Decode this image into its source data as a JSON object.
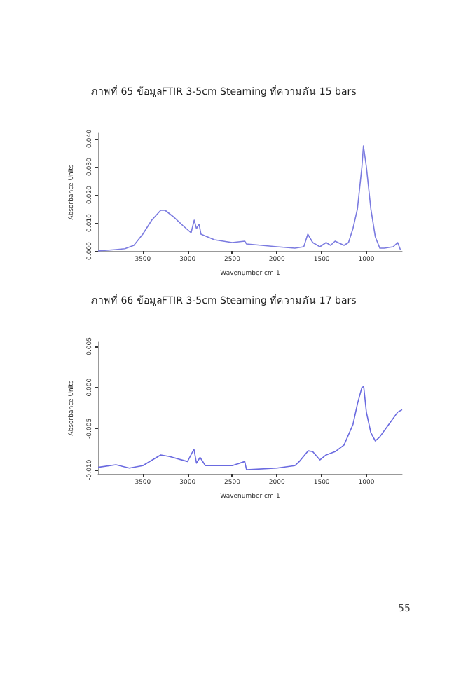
{
  "chart_data": [
    {
      "type": "line",
      "title": "ภาพที่ 65 ข้อมูลFTIR 3-5cm Steaming ที่ความดัน 15 bars",
      "xlabel": "Wavenumber cm-1",
      "ylabel": "Absorbance Units",
      "x": [
        4000,
        3800,
        3700,
        3600,
        3500,
        3400,
        3300,
        3250,
        3150,
        3050,
        2960,
        2925,
        2900,
        2870,
        2850,
        2700,
        2500,
        2360,
        2340,
        2000,
        1800,
        1700,
        1655,
        1600,
        1520,
        1450,
        1400,
        1350,
        1250,
        1200,
        1150,
        1100,
        1050,
        1033,
        1000,
        950,
        900,
        850,
        800,
        700,
        650,
        620
      ],
      "series": [
        {
          "color": "#7b7be0",
          "values": [
            0.0,
            0.0005,
            0.0008,
            0.002,
            0.006,
            0.011,
            0.0145,
            0.0145,
            0.012,
            0.009,
            0.0065,
            0.011,
            0.008,
            0.0095,
            0.006,
            0.004,
            0.003,
            0.0035,
            0.0025,
            0.0015,
            0.001,
            0.0015,
            0.006,
            0.003,
            0.0015,
            0.003,
            0.002,
            0.0035,
            0.002,
            0.003,
            0.008,
            0.015,
            0.03,
            0.0375,
            0.03,
            0.015,
            0.005,
            0.001,
            0.001,
            0.0015,
            0.003,
            0.0005
          ]
        }
      ],
      "xlim": [
        4000,
        600
      ],
      "xticks": [
        3500,
        3000,
        2500,
        2000,
        1500,
        1000
      ],
      "ylim": [
        0,
        0.042
      ],
      "yticks": [
        {
          "value": 0,
          "label": "0.000"
        },
        {
          "value": 0.01,
          "label": "0.010"
        },
        {
          "value": 0.02,
          "label": "0.020"
        },
        {
          "value": 0.03,
          "label": "0.030"
        },
        {
          "value": 0.04,
          "label": "0.040"
        }
      ],
      "grid": false,
      "marker": "none"
    },
    {
      "type": "line",
      "title": "ภาพที่ 66 ข้อมูลFTIR 3-5cm Steaming ที่ความดัน 17 bars",
      "xlabel": "Wavenumber cm-1",
      "ylabel": "Absorbance Units",
      "annotations": [
        "55"
      ],
      "x": [
        4000,
        3800,
        3650,
        3500,
        3300,
        3200,
        3000,
        2928,
        2900,
        2860,
        2800,
        2500,
        2360,
        2340,
        2000,
        1800,
        1750,
        1650,
        1600,
        1520,
        1450,
        1350,
        1250,
        1150,
        1100,
        1050,
        1030,
        1000,
        950,
        900,
        850,
        750,
        650,
        600
      ],
      "series": [
        {
          "color": "#6a6ae0",
          "values": [
            -0.0097,
            -0.0094,
            -0.0098,
            -0.0095,
            -0.0082,
            -0.0084,
            -0.009,
            -0.0075,
            -0.0092,
            -0.0085,
            -0.0095,
            -0.0095,
            -0.009,
            -0.01,
            -0.0098,
            -0.0095,
            -0.009,
            -0.0077,
            -0.0078,
            -0.0088,
            -0.0082,
            -0.0078,
            -0.007,
            -0.0045,
            -0.002,
            0.0,
            0.0001,
            -0.003,
            -0.0055,
            -0.0065,
            -0.006,
            -0.0045,
            -0.003,
            -0.0027
          ]
        }
      ],
      "xlim": [
        4000,
        600
      ],
      "xticks": [
        3500,
        3000,
        2500,
        2000,
        1500,
        1000
      ],
      "ylim": [
        -0.0105,
        0.0055
      ],
      "yticks": [
        {
          "value": -0.01,
          "label": "-0.010"
        },
        {
          "value": -0.005,
          "label": "-0.005"
        },
        {
          "value": 0,
          "label": "0.000"
        },
        {
          "value": 0.005,
          "label": "0.005"
        }
      ],
      "grid": false,
      "marker": "none"
    }
  ]
}
